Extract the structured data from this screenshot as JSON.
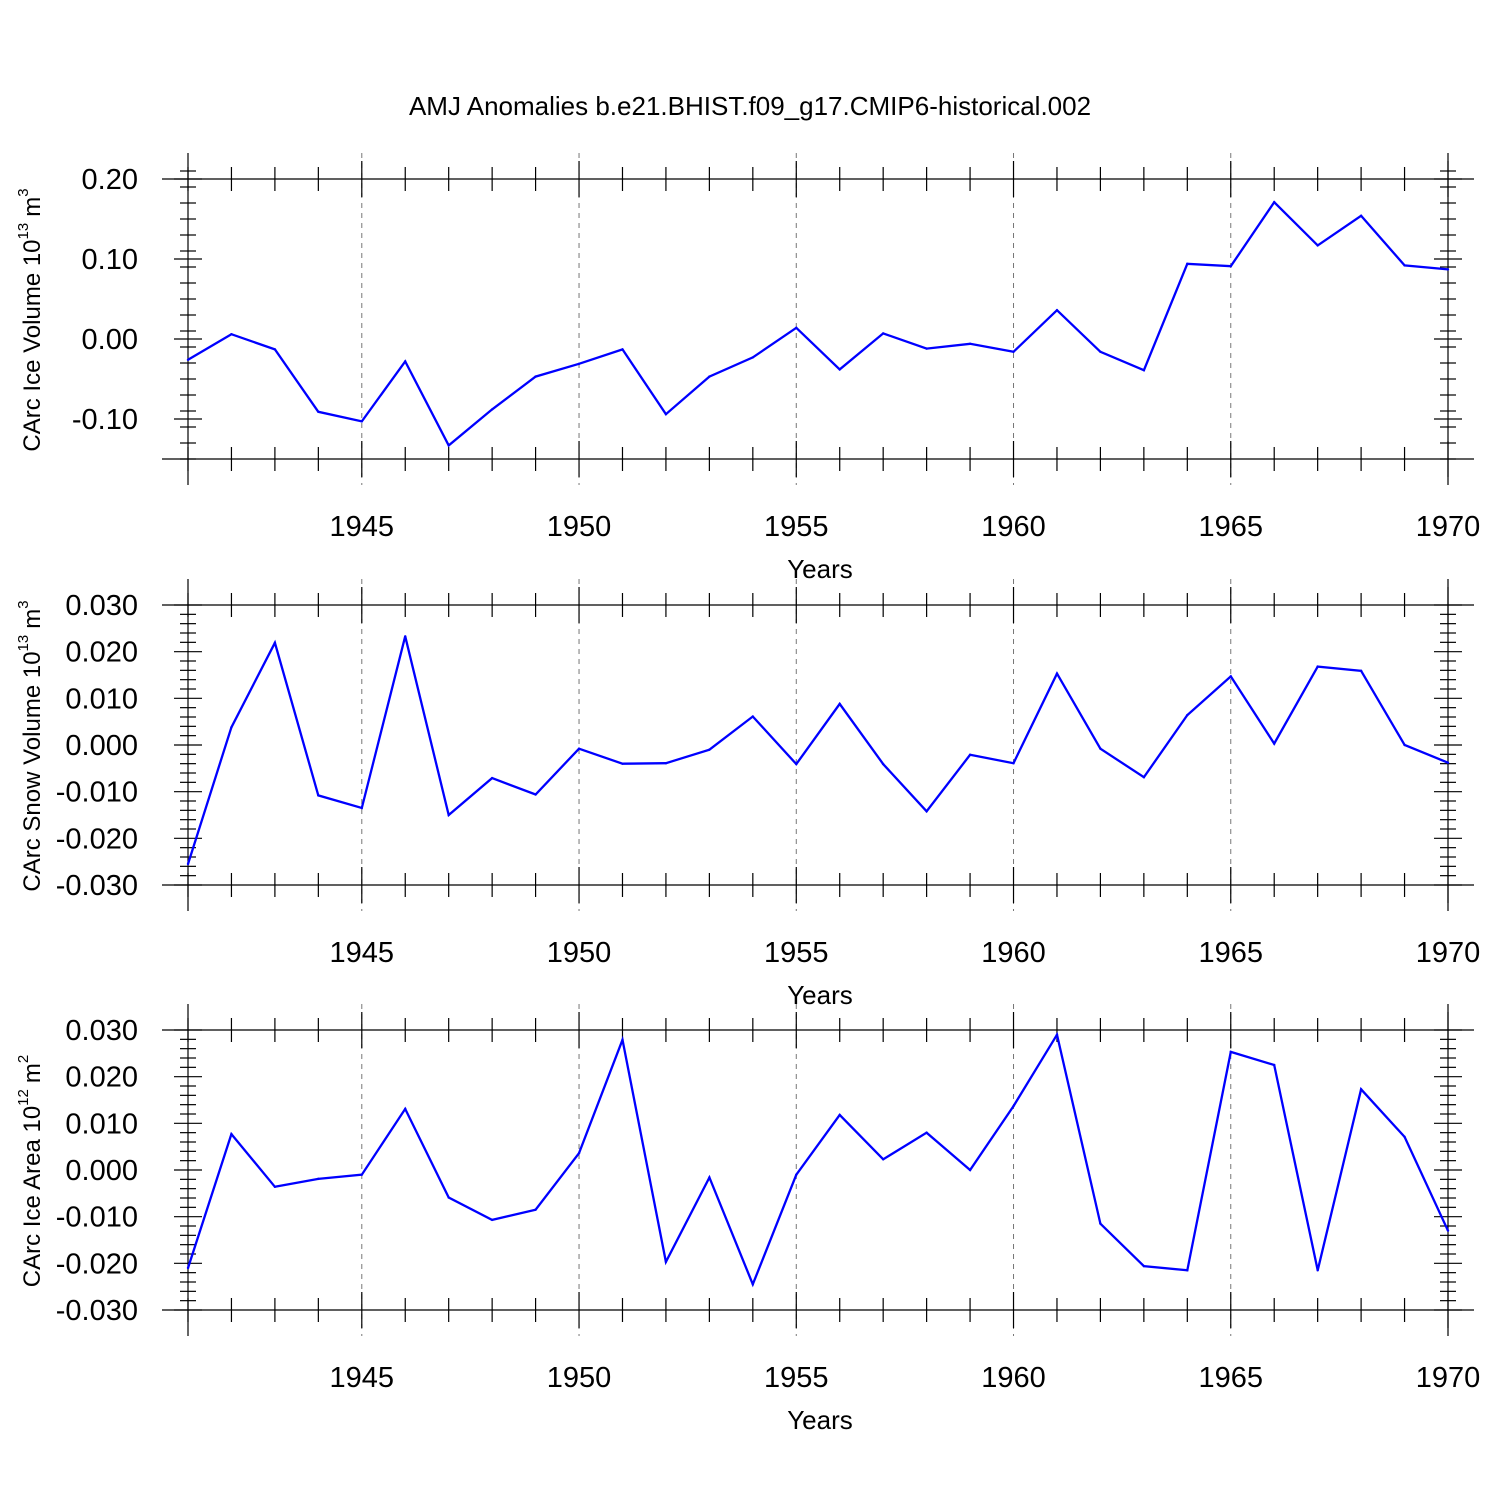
{
  "title": "AMJ Anomalies b.e21.BHIST.f09_g17.CMIP6-historical.002",
  "line_color": "#0000ff",
  "chart_data": [
    {
      "type": "line",
      "ylabel_text": "CArc Ice Volume 10",
      "ylabel_exp": "13",
      "ylabel_unit": "m",
      "ylabel_unit_exp": "3",
      "xlabel": "Years",
      "xlim": [
        1941,
        1970
      ],
      "ylim": [
        -0.15,
        0.2
      ],
      "yticks": [
        -0.1,
        0.0,
        0.1,
        0.2
      ],
      "yticklabels": [
        "-0.10",
        "0.00",
        "0.10",
        "0.20"
      ],
      "yminor_step": 0.02,
      "xticks": [
        1945,
        1950,
        1955,
        1960,
        1965,
        1970
      ],
      "xticklabels": [
        "1945",
        "1950",
        "1955",
        "1960",
        "1965",
        "1970"
      ],
      "x": [
        1941,
        1942,
        1943,
        1944,
        1945,
        1946,
        1947,
        1948,
        1949,
        1950,
        1951,
        1952,
        1953,
        1954,
        1955,
        1956,
        1957,
        1958,
        1959,
        1960,
        1961,
        1962,
        1963,
        1964,
        1965,
        1966,
        1967,
        1968,
        1969,
        1970
      ],
      "values": [
        -0.026,
        0.006,
        -0.013,
        -0.091,
        -0.103,
        -0.028,
        -0.133,
        -0.088,
        -0.047,
        -0.031,
        -0.013,
        -0.094,
        -0.047,
        -0.023,
        0.014,
        -0.038,
        0.007,
        -0.012,
        -0.006,
        -0.016,
        0.036,
        -0.016,
        -0.039,
        0.094,
        0.091,
        0.171,
        0.117,
        0.154,
        0.092,
        0.087
      ]
    },
    {
      "type": "line",
      "ylabel_text": "CArc Snow Volume 10",
      "ylabel_exp": "13",
      "ylabel_unit": "m",
      "ylabel_unit_exp": "3",
      "xlabel": "Years",
      "xlim": [
        1941,
        1970
      ],
      "ylim": [
        -0.03,
        0.03
      ],
      "yticks": [
        -0.03,
        -0.02,
        -0.01,
        0.0,
        0.01,
        0.02,
        0.03
      ],
      "yticklabels": [
        "-0.030",
        "-0.020",
        "-0.010",
        "0.000",
        "0.010",
        "0.020",
        "0.030"
      ],
      "yminor_step": 0.002,
      "xticks": [
        1945,
        1950,
        1955,
        1960,
        1965,
        1970
      ],
      "xticklabels": [
        "1945",
        "1950",
        "1955",
        "1960",
        "1965",
        "1970"
      ],
      "x": [
        1941,
        1942,
        1943,
        1944,
        1945,
        1946,
        1947,
        1948,
        1949,
        1950,
        1951,
        1952,
        1953,
        1954,
        1955,
        1956,
        1957,
        1958,
        1959,
        1960,
        1961,
        1962,
        1963,
        1964,
        1965,
        1966,
        1967,
        1968,
        1969,
        1970
      ],
      "values": [
        -0.0255,
        0.0038,
        0.0219,
        -0.0108,
        -0.0135,
        0.0233,
        -0.015,
        -0.0071,
        -0.0106,
        -0.0008,
        -0.004,
        -0.0039,
        -0.001,
        0.0061,
        -0.0041,
        0.0088,
        -0.0041,
        -0.0142,
        -0.0021,
        -0.0039,
        0.0153,
        -0.0008,
        -0.0069,
        0.0064,
        0.0147,
        0.0003,
        0.0168,
        0.0159,
        0.0,
        -0.0038
      ]
    },
    {
      "type": "line",
      "ylabel_text": "CArc Ice Area 10",
      "ylabel_exp": "12",
      "ylabel_unit": "m",
      "ylabel_unit_exp": "2",
      "xlabel": "Years",
      "xlim": [
        1941,
        1970
      ],
      "ylim": [
        -0.03,
        0.03
      ],
      "yticks": [
        -0.03,
        -0.02,
        -0.01,
        0.0,
        0.01,
        0.02,
        0.03
      ],
      "yticklabels": [
        "-0.030",
        "-0.020",
        "-0.010",
        "0.000",
        "0.010",
        "0.020",
        "0.030"
      ],
      "yminor_step": 0.002,
      "xticks": [
        1945,
        1950,
        1955,
        1960,
        1965,
        1970
      ],
      "xticklabels": [
        "1945",
        "1950",
        "1955",
        "1960",
        "1965",
        "1970"
      ],
      "x": [
        1941,
        1942,
        1943,
        1944,
        1945,
        1946,
        1947,
        1948,
        1949,
        1950,
        1951,
        1952,
        1953,
        1954,
        1955,
        1956,
        1957,
        1958,
        1959,
        1960,
        1961,
        1962,
        1963,
        1964,
        1965,
        1966,
        1967,
        1968,
        1969,
        1970
      ],
      "values": [
        -0.021,
        0.0077,
        -0.0036,
        -0.0019,
        -0.001,
        0.0131,
        -0.0059,
        -0.0107,
        -0.0085,
        0.0036,
        0.0279,
        -0.0197,
        -0.0016,
        -0.0245,
        -0.001,
        0.0118,
        0.0023,
        0.008,
        0.0,
        0.0137,
        0.029,
        -0.0115,
        -0.0206,
        -0.0215,
        0.0253,
        0.0225,
        -0.0215,
        0.0173,
        0.0071,
        -0.013
      ]
    }
  ]
}
